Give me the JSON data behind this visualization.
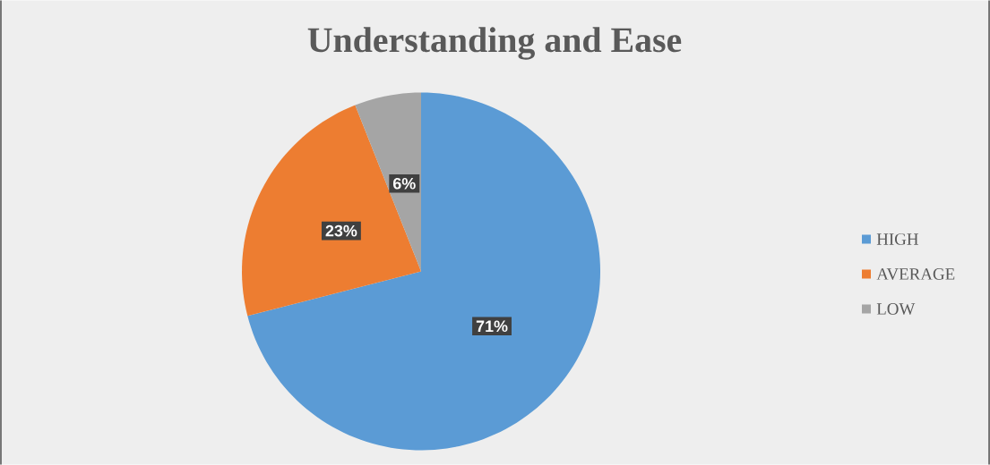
{
  "chart_data": {
    "type": "pie",
    "title": "Understanding and Ease",
    "categories": [
      "HIGH",
      "AVERAGE",
      "LOW"
    ],
    "values": [
      71,
      23,
      6
    ],
    "colors": [
      "#5b9bd5",
      "#ed7d31",
      "#a5a5a5"
    ],
    "value_labels": [
      "71%",
      "23%",
      "6%"
    ],
    "legend": "right"
  }
}
